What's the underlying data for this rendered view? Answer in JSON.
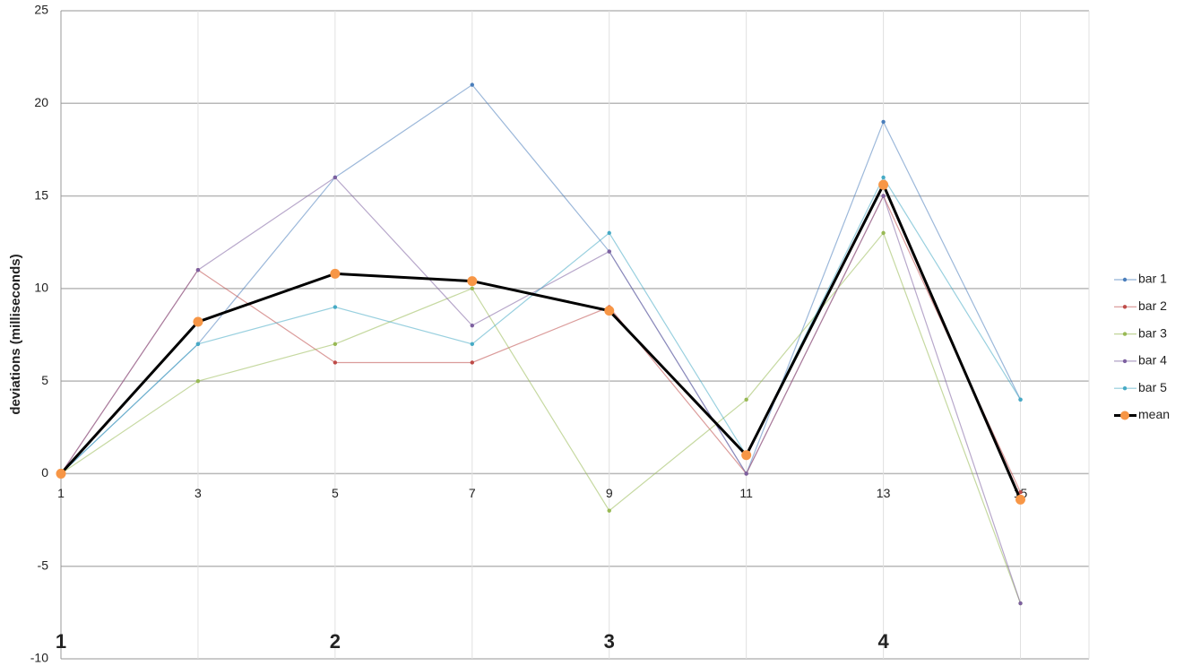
{
  "chart_data": {
    "type": "line",
    "y_label": "deviations (milliseconds)",
    "x": [
      1,
      3,
      5,
      7,
      9,
      11,
      13,
      15
    ],
    "xlim": [
      1,
      16
    ],
    "xticks": [
      1,
      3,
      5,
      7,
      9,
      11,
      13,
      15
    ],
    "ylim": [
      -10,
      25
    ],
    "yticks": [
      -10,
      -5,
      0,
      5,
      10,
      15,
      20,
      25
    ],
    "grid": true,
    "legend": "right",
    "annotations": [
      "1",
      "2",
      "3",
      "4"
    ],
    "series": [
      {
        "name": "bar 1",
        "color": "#4a7ebb",
        "values": [
          0,
          7,
          16,
          21,
          12,
          0,
          19,
          4
        ]
      },
      {
        "name": "bar 2",
        "color": "#be4b48",
        "values": [
          0,
          11,
          6,
          6,
          9,
          0,
          15,
          -1
        ]
      },
      {
        "name": "bar 3",
        "color": "#98b954",
        "values": [
          0,
          5,
          7,
          10,
          -2,
          4,
          13,
          -7
        ]
      },
      {
        "name": "bar 4",
        "color": "#7d60a0",
        "values": [
          0,
          11,
          16,
          8,
          12,
          0,
          15,
          -7
        ]
      },
      {
        "name": "bar 5",
        "color": "#46aac5",
        "values": [
          0,
          7,
          9,
          7,
          13,
          1,
          16,
          4
        ]
      },
      {
        "name": "mean",
        "color": "#000000",
        "marker_color": "#f79646",
        "values": [
          0,
          8.2,
          10.8,
          10.4,
          8.8,
          1,
          15.6,
          -1.4
        ]
      }
    ]
  }
}
